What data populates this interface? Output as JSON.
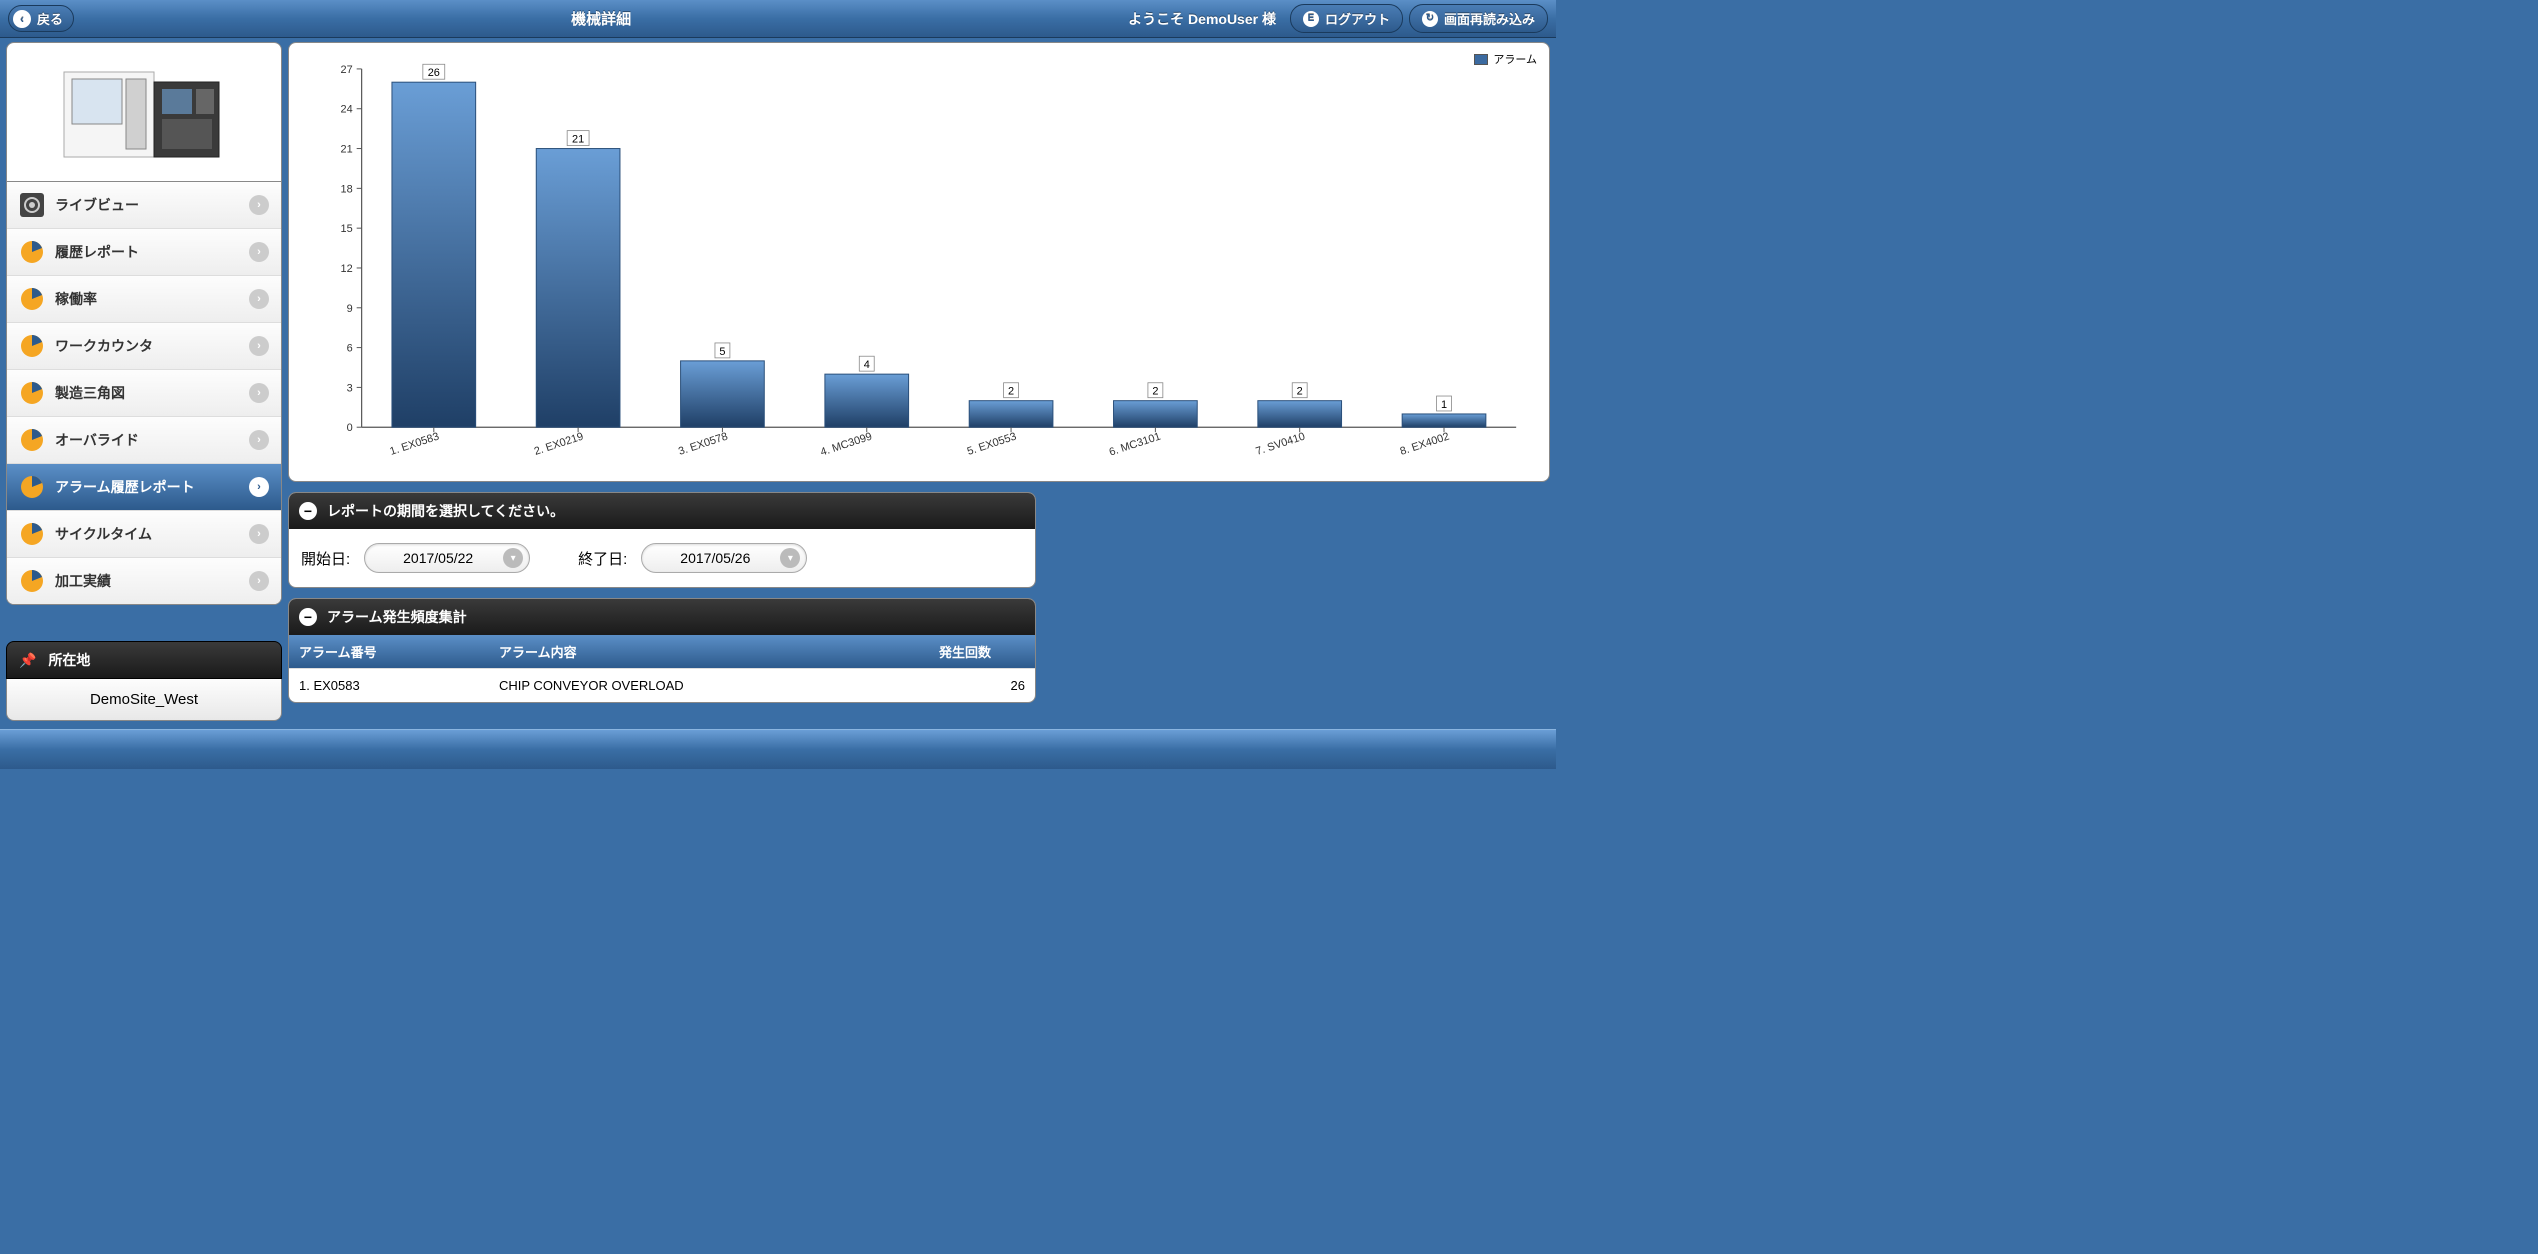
{
  "header": {
    "back_label": "戻る",
    "title": "機械詳細",
    "welcome": "ようこそ DemoUser 様",
    "logout_label": "ログアウト",
    "reload_label": "画面再読み込み"
  },
  "sidebar": {
    "items": [
      {
        "label": "ライブビュー",
        "icon": "gear",
        "active": false
      },
      {
        "label": "履歴レポート",
        "icon": "pie",
        "active": false
      },
      {
        "label": "稼働率",
        "icon": "pie",
        "active": false
      },
      {
        "label": "ワークカウンタ",
        "icon": "pie",
        "active": false
      },
      {
        "label": "製造三角図",
        "icon": "pie",
        "active": false
      },
      {
        "label": "オーバライド",
        "icon": "pie",
        "active": false
      },
      {
        "label": "アラーム履歴レポート",
        "icon": "pie",
        "active": true
      },
      {
        "label": "サイクルタイム",
        "icon": "pie",
        "active": false
      },
      {
        "label": "加工実績",
        "icon": "pie",
        "active": false
      }
    ],
    "location_title": "所在地",
    "location_value": "DemoSite_West"
  },
  "chart": {
    "type": "bar",
    "legend_label": "アラーム",
    "legend_color": "#3b6aa0",
    "bar_gradient_top": "#6a9ed6",
    "bar_gradient_bottom": "#1f3f66",
    "bar_border": "#2a4f7a",
    "background_color": "#ffffff",
    "axis_color": "#555555",
    "tick_font_size": 11,
    "label_font_size": 11,
    "value_label_bg": "#ffffff",
    "value_label_border": "#888888",
    "ylim": [
      0,
      27
    ],
    "yticks": [
      0,
      3,
      6,
      9,
      12,
      15,
      18,
      21,
      24,
      27
    ],
    "bars": [
      {
        "label": "1. EX0583",
        "value": 26
      },
      {
        "label": "2. EX0219",
        "value": 21
      },
      {
        "label": "3. EX0578",
        "value": 5
      },
      {
        "label": "4. MC3099",
        "value": 4
      },
      {
        "label": "5. EX0553",
        "value": 2
      },
      {
        "label": "6. MC3101",
        "value": 2
      },
      {
        "label": "7. SV0410",
        "value": 2
      },
      {
        "label": "8. EX4002",
        "value": 1
      }
    ]
  },
  "period_panel": {
    "title": "レポートの期間を選択してください。",
    "start_label": "開始日:",
    "start_value": "2017/05/22",
    "end_label": "終了日:",
    "end_value": "2017/05/26"
  },
  "summary_panel": {
    "title": "アラーム発生頻度集計",
    "columns": [
      "アラーム番号",
      "アラーム内容",
      "発生回数"
    ],
    "rows": [
      [
        "1. EX0583",
        "CHIP CONVEYOR OVERLOAD",
        "26"
      ]
    ]
  }
}
